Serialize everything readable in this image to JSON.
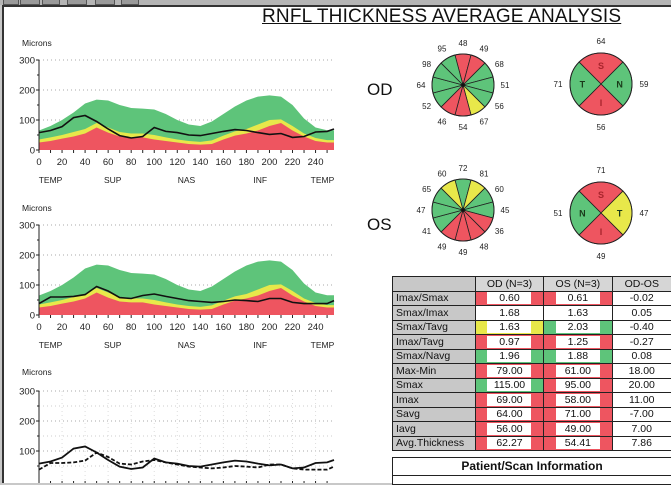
{
  "title": "RNFL THICKNESS AVERAGE ANALYSIS",
  "colors": {
    "red": "#ee5560",
    "yellow": "#e8e84a",
    "green": "#5ec47a",
    "line": "#111111"
  },
  "chart_data": [
    {
      "type": "area",
      "id": "od-tsnit",
      "ylabel": "Microns",
      "ylim": [
        0,
        300
      ],
      "yticks": [
        0,
        100,
        200,
        300
      ],
      "xlim": [
        0,
        256
      ],
      "xticks": [
        0,
        20,
        40,
        60,
        80,
        100,
        120,
        140,
        160,
        180,
        200,
        220,
        240
      ],
      "region_labels": [
        "TEMP",
        "SUP",
        "NAS",
        "INF",
        "TEMP"
      ],
      "x": [
        0,
        10,
        20,
        30,
        40,
        50,
        60,
        70,
        80,
        90,
        100,
        110,
        120,
        130,
        140,
        150,
        160,
        170,
        180,
        190,
        200,
        210,
        220,
        230,
        240,
        250,
        256
      ],
      "bands": {
        "red_upper": [
          25,
          30,
          38,
          45,
          55,
          75,
          58,
          45,
          42,
          42,
          35,
          30,
          25,
          20,
          18,
          20,
          35,
          48,
          55,
          65,
          80,
          90,
          65,
          45,
          30,
          25,
          25
        ],
        "yellow_upper": [
          35,
          42,
          50,
          60,
          70,
          90,
          75,
          60,
          55,
          55,
          50,
          42,
          35,
          30,
          27,
          32,
          48,
          62,
          70,
          85,
          100,
          102,
          80,
          55,
          40,
          33,
          33
        ],
        "green_upper": [
          65,
          80,
          100,
          125,
          155,
          168,
          165,
          150,
          140,
          138,
          135,
          120,
          100,
          85,
          80,
          95,
          120,
          145,
          165,
          178,
          182,
          178,
          150,
          105,
          75,
          66,
          66
        ]
      },
      "series": [
        {
          "name": "OD",
          "style": "solid",
          "values": [
            58,
            65,
            78,
            108,
            115,
            95,
            70,
            48,
            40,
            45,
            75,
            62,
            58,
            50,
            48,
            55,
            62,
            68,
            65,
            58,
            52,
            55,
            42,
            45,
            60,
            62,
            70
          ]
        }
      ]
    },
    {
      "type": "area",
      "id": "os-tsnit",
      "ylabel": "Microns",
      "ylim": [
        0,
        300
      ],
      "yticks": [
        0,
        100,
        200,
        300
      ],
      "xlim": [
        0,
        256
      ],
      "xticks": [
        0,
        20,
        40,
        60,
        80,
        100,
        120,
        140,
        160,
        180,
        200,
        220,
        240
      ],
      "region_labels": [
        "TEMP",
        "SUP",
        "NAS",
        "INF",
        "TEMP"
      ],
      "x": [
        0,
        10,
        20,
        30,
        40,
        50,
        60,
        70,
        80,
        90,
        100,
        110,
        120,
        130,
        140,
        150,
        160,
        170,
        180,
        190,
        200,
        210,
        220,
        230,
        240,
        250,
        256
      ],
      "bands": {
        "red_upper": [
          25,
          30,
          38,
          45,
          55,
          75,
          58,
          45,
          42,
          42,
          35,
          30,
          25,
          20,
          18,
          20,
          35,
          48,
          55,
          65,
          80,
          90,
          65,
          45,
          30,
          25,
          25
        ],
        "yellow_upper": [
          35,
          42,
          50,
          60,
          70,
          90,
          75,
          60,
          55,
          55,
          50,
          42,
          35,
          30,
          27,
          32,
          48,
          62,
          70,
          85,
          100,
          102,
          80,
          55,
          40,
          33,
          33
        ],
        "green_upper": [
          65,
          80,
          100,
          125,
          155,
          168,
          165,
          150,
          140,
          138,
          135,
          120,
          100,
          85,
          80,
          95,
          120,
          145,
          165,
          178,
          182,
          178,
          150,
          105,
          75,
          66,
          66
        ]
      },
      "series": [
        {
          "name": "OS",
          "style": "solid",
          "values": [
            38,
            60,
            60,
            62,
            68,
            95,
            80,
            58,
            55,
            65,
            70,
            62,
            55,
            48,
            45,
            42,
            45,
            50,
            48,
            45,
            55,
            55,
            42,
            38,
            38,
            38,
            48
          ]
        }
      ]
    },
    {
      "type": "line",
      "id": "od-os-compare",
      "ylabel": "Microns",
      "ylim": [
        0,
        300
      ],
      "yticks": [
        0,
        100,
        200,
        300
      ],
      "xlim": [
        0,
        256
      ],
      "x": [
        0,
        10,
        20,
        30,
        40,
        50,
        60,
        70,
        80,
        90,
        100,
        110,
        120,
        130,
        140,
        150,
        160,
        170,
        180,
        190,
        200,
        210,
        220,
        230,
        240,
        250,
        256
      ],
      "series": [
        {
          "name": "OD",
          "style": "solid",
          "values": [
            58,
            65,
            78,
            108,
            115,
            95,
            70,
            48,
            40,
            45,
            75,
            62,
            58,
            50,
            48,
            55,
            62,
            68,
            65,
            58,
            52,
            55,
            42,
            45,
            60,
            62,
            70
          ]
        },
        {
          "name": "OS",
          "style": "dashed",
          "values": [
            38,
            60,
            60,
            62,
            68,
            95,
            80,
            58,
            55,
            65,
            70,
            62,
            55,
            48,
            45,
            42,
            45,
            50,
            48,
            45,
            55,
            55,
            42,
            38,
            38,
            38,
            48
          ]
        }
      ]
    },
    {
      "type": "pie",
      "id": "od-clock",
      "eye": "OD",
      "labels_clockwise_from_top": [
        "48",
        "49",
        "68",
        "51",
        "56",
        "67",
        "54",
        "46",
        "52",
        "64",
        "98",
        "95"
      ],
      "values": [
        48,
        49,
        68,
        51,
        56,
        67,
        54,
        46,
        52,
        64,
        98,
        95
      ],
      "categories": [
        "red",
        "red",
        "green",
        "green",
        "green",
        "yellow",
        "red",
        "red",
        "green",
        "green",
        "green",
        "green"
      ]
    },
    {
      "type": "pie",
      "id": "od-quadrant",
      "eye": "OD",
      "quadrants": [
        {
          "letter": "S",
          "value": 64,
          "category": "red"
        },
        {
          "letter": "N",
          "value": 59,
          "category": "green"
        },
        {
          "letter": "I",
          "value": 56,
          "category": "red"
        },
        {
          "letter": "T",
          "value": 71,
          "category": "green"
        }
      ]
    },
    {
      "type": "pie",
      "id": "os-clock",
      "eye": "OS",
      "labels_clockwise_from_top": [
        "72",
        "81",
        "60",
        "45",
        "36",
        "48",
        "49",
        "49",
        "41",
        "47",
        "65",
        "60"
      ],
      "values": [
        72,
        81,
        60,
        45,
        36,
        48,
        49,
        49,
        41,
        47,
        65,
        60
      ],
      "categories": [
        "green",
        "yellow",
        "green",
        "green",
        "red",
        "red",
        "red",
        "red",
        "green",
        "green",
        "green",
        "yellow"
      ]
    },
    {
      "type": "pie",
      "id": "os-quadrant",
      "eye": "OS",
      "quadrants": [
        {
          "letter": "S",
          "value": 71,
          "category": "red"
        },
        {
          "letter": "T",
          "value": 47,
          "category": "yellow"
        },
        {
          "letter": "I",
          "value": 49,
          "category": "red"
        },
        {
          "letter": "N",
          "value": 51,
          "category": "green"
        }
      ]
    }
  ],
  "eyes": {
    "od": "OD",
    "os": "OS"
  },
  "table": {
    "headers": [
      "",
      "OD (N=3)",
      "OS (N=3)",
      "OD-OS"
    ],
    "rows": [
      {
        "label": "Imax/Smax",
        "od": "0.60",
        "od_cat": "red",
        "os": "0.61",
        "os_cat": "red",
        "diff": "-0.02"
      },
      {
        "label": "Smax/Imax",
        "od": "1.68",
        "od_cat": "none",
        "os": "1.63",
        "os_cat": "none",
        "diff": "0.05"
      },
      {
        "label": "Smax/Tavg",
        "od": "1.63",
        "od_cat": "yellow",
        "os": "2.03",
        "os_cat": "green",
        "diff": "-0.40"
      },
      {
        "label": "Imax/Tavg",
        "od": "0.97",
        "od_cat": "red",
        "os": "1.25",
        "os_cat": "red",
        "diff": "-0.27"
      },
      {
        "label": "Smax/Navg",
        "od": "1.96",
        "od_cat": "green",
        "os": "1.88",
        "os_cat": "green",
        "diff": "0.08"
      },
      {
        "label": "Max-Min",
        "od": "79.00",
        "od_cat": "red",
        "os": "61.00",
        "os_cat": "red",
        "diff": "18.00"
      },
      {
        "label": "Smax",
        "od": "115.00",
        "od_cat": "green",
        "os": "95.00",
        "os_cat": "red",
        "diff": "20.00"
      },
      {
        "label": "Imax",
        "od": "69.00",
        "od_cat": "red",
        "os": "58.00",
        "os_cat": "red",
        "diff": "11.00"
      },
      {
        "label": "Savg",
        "od": "64.00",
        "od_cat": "red",
        "os": "71.00",
        "os_cat": "red",
        "diff": "-7.00"
      },
      {
        "label": "Iavg",
        "od": "56.00",
        "od_cat": "red",
        "os": "49.00",
        "os_cat": "red",
        "diff": "7.00"
      },
      {
        "label": "Avg.Thickness",
        "od": "62.27",
        "od_cat": "red",
        "os": "54.41",
        "os_cat": "red",
        "diff": "7.86"
      }
    ]
  },
  "patient_info": {
    "header": "Patient/Scan Information"
  }
}
